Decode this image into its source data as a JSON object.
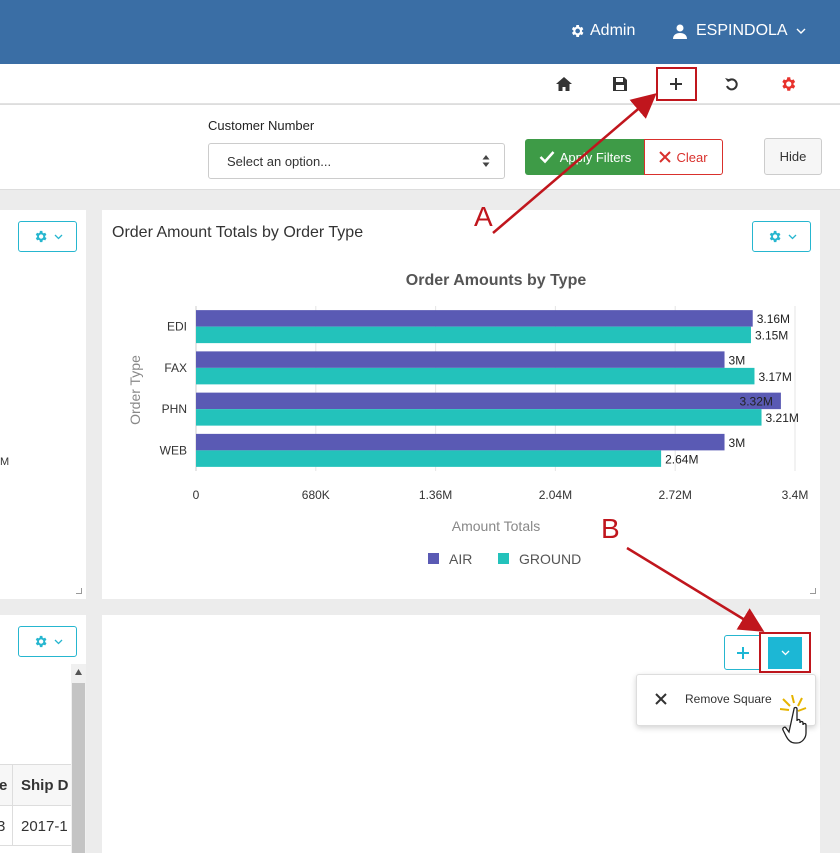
{
  "header": {
    "admin_label": "Admin",
    "user_label": "ESPINDOLA"
  },
  "filters": {
    "customer_label": "Customer Number",
    "customer_placeholder": "Select an option...",
    "apply_label": "Apply Filters",
    "clear_label": "Clear",
    "hide_label": "Hide"
  },
  "panel_right": {
    "title": "Order Amount Totals by Order Type"
  },
  "chart_data": {
    "type": "bar",
    "orientation": "horizontal",
    "title": "Order Amounts by Type",
    "xlabel": "Amount Totals",
    "ylabel": "Order Type",
    "categories": [
      "EDI",
      "FAX",
      "PHN",
      "WEB"
    ],
    "series": [
      {
        "name": "AIR",
        "color": "#5a5ab4",
        "values": [
          3.16,
          3.0,
          3.32,
          3.0
        ],
        "labels": [
          "3.16M",
          "3M",
          "3.32M",
          "3M"
        ]
      },
      {
        "name": "GROUND",
        "color": "#23c2bb",
        "values": [
          3.15,
          3.17,
          3.21,
          2.64
        ],
        "labels": [
          "3.15M",
          "3.17M",
          "3.21M",
          "2.64M"
        ]
      }
    ],
    "xlim": [
      0,
      3.4
    ],
    "xticks": [
      0,
      0.68,
      1.36,
      2.04,
      2.72,
      3.4
    ],
    "xtick_labels": [
      "0",
      "680K",
      "1.36M",
      "2.04M",
      "2.72M",
      "3.4M"
    ],
    "legend_position": "bottom"
  },
  "dropdown_menu": {
    "remove_label": "Remove Square"
  },
  "table": {
    "headers": [
      "e",
      "Ship D"
    ],
    "row1": [
      "3",
      "2017-1"
    ]
  },
  "left_panel": {
    "partial_label": "M"
  },
  "annotations": {
    "a": "A",
    "b": "B"
  },
  "colors": {
    "header_bg": "#3a6ea5",
    "accent": "#1cb7d5",
    "apply_green": "#3e9b47",
    "clear_red": "#d9302c",
    "callout_red": "#c0161d",
    "settings_red": "#e8322d"
  }
}
